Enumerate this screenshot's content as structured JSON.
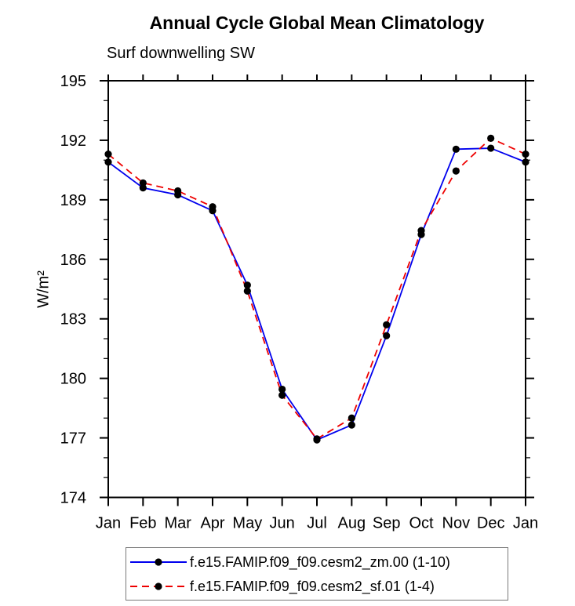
{
  "title": "Annual Cycle Global Mean Climatology",
  "subtitle": "Surf downwelling SW",
  "y_axis": {
    "label": "W/m²",
    "min": 174,
    "max": 195,
    "major_tick_values": [
      174,
      177,
      180,
      183,
      186,
      189,
      192,
      195
    ],
    "minor_tick_step": 1
  },
  "x_axis": {
    "labels": [
      "Jan",
      "Feb",
      "Mar",
      "Apr",
      "May",
      "Jun",
      "Jul",
      "Aug",
      "Sep",
      "Oct",
      "Nov",
      "Dec",
      "Jan"
    ]
  },
  "colors": {
    "series_blue": "#0000ee",
    "series_red": "#ee0000",
    "marker": "#000000",
    "axis": "#000000"
  },
  "legend": {
    "entries": [
      {
        "label": "f.e15.FAMIP.f09_f09.cesm2_zm.00 (1-10)",
        "color": "#0000ee",
        "style": "solid",
        "marker": "black-circle"
      },
      {
        "label": "f.e15.FAMIP.f09_f09.cesm2_sf.01 (1-4)",
        "color": "#ee0000",
        "style": "dashed",
        "marker": "black-circle"
      }
    ]
  },
  "chart_data": {
    "type": "line",
    "title": "Annual Cycle Global Mean Climatology",
    "subtitle": "Surf downwelling SW",
    "ylabel": "W/m²",
    "ylim": [
      174,
      195
    ],
    "grid": false,
    "legend_position": "bottom",
    "categories": [
      "Jan",
      "Feb",
      "Mar",
      "Apr",
      "May",
      "Jun",
      "Jul",
      "Aug",
      "Sep",
      "Oct",
      "Nov",
      "Dec",
      "Jan"
    ],
    "series": [
      {
        "name": "f.e15.FAMIP.f09_f09.cesm2_zm.00 (1-10)",
        "color": "#0000ee",
        "line_style": "solid",
        "marker": "black-circle",
        "values": [
          190.9,
          189.6,
          189.25,
          188.45,
          184.7,
          179.45,
          176.9,
          177.65,
          182.15,
          187.25,
          191.55,
          191.6,
          190.9
        ]
      },
      {
        "name": "f.e15.FAMIP.f09_f09.cesm2_sf.01 (1-4)",
        "color": "#ee0000",
        "line_style": "dashed",
        "marker": "black-circle",
        "values": [
          191.3,
          189.85,
          189.45,
          188.65,
          184.4,
          179.15,
          176.95,
          178.0,
          182.7,
          187.45,
          190.45,
          192.1,
          191.3
        ]
      }
    ]
  }
}
